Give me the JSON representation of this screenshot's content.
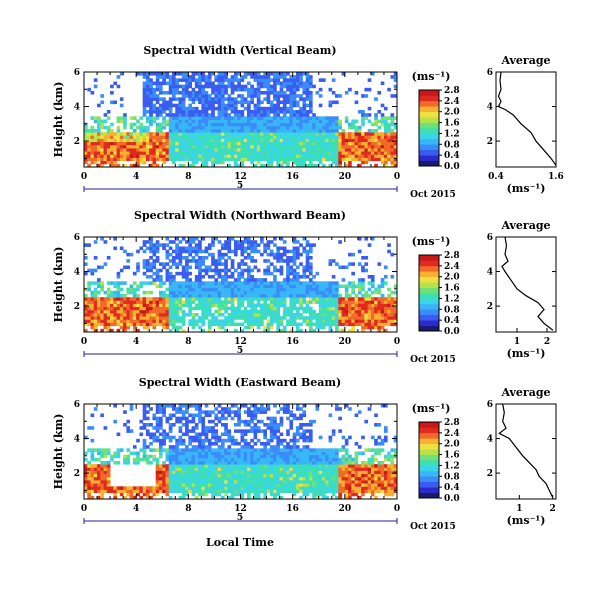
{
  "colors": {
    "scale": [
      "#1a1a6e",
      "#2a2acd",
      "#3a5cf0",
      "#3a8cf8",
      "#38b6f8",
      "#3ad6e8",
      "#3de0b0",
      "#6fe07a",
      "#b6e24a",
      "#f0e040",
      "#f8b030",
      "#f06a28",
      "#e02a20",
      "#c81818"
    ]
  },
  "chart_data": [
    {
      "type": "heatmap",
      "title": "Spectral Width (Vertical Beam)",
      "ylabel": "Height (km)",
      "xlabel": "",
      "x_ticks": [
        "0",
        "4",
        "8",
        "12",
        "16",
        "20",
        "0"
      ],
      "y_ticks": [
        "2",
        "4",
        "6"
      ],
      "xlim": [
        0,
        24
      ],
      "ylim": [
        0.5,
        6
      ],
      "date_label": "Oct 2015",
      "day_label": "5",
      "colorbar": {
        "unit": "(ms⁻¹)",
        "ticks": [
          "0.0",
          "0.4",
          "0.8",
          "1.2",
          "1.6",
          "2.0",
          "2.4",
          "2.8"
        ],
        "range": [
          0,
          2.8
        ]
      },
      "profile": {
        "title": "Average",
        "xlabel": "(ms⁻¹)",
        "x_ticks": [
          "0.4",
          "1.6"
        ],
        "xlim": [
          0.4,
          1.6
        ],
        "y_ticks": [
          "2",
          "4",
          "6"
        ],
        "heights": [
          0.6,
          1.0,
          1.5,
          2.0,
          2.5,
          3.0,
          3.5,
          3.8,
          4.0,
          4.3,
          4.6,
          5.0,
          5.5,
          6.0
        ],
        "values": [
          1.6,
          1.5,
          1.35,
          1.2,
          1.1,
          0.9,
          0.75,
          0.6,
          0.45,
          0.5,
          0.45,
          0.5,
          0.48,
          0.5
        ]
      }
    },
    {
      "type": "heatmap",
      "title": "Spectral Width (Northward Beam)",
      "ylabel": "Height (km)",
      "xlabel": "",
      "x_ticks": [
        "0",
        "4",
        "8",
        "12",
        "16",
        "20",
        "0"
      ],
      "y_ticks": [
        "2",
        "4",
        "6"
      ],
      "xlim": [
        0,
        24
      ],
      "ylim": [
        0.5,
        6
      ],
      "date_label": "Oct 2015",
      "day_label": "5",
      "colorbar": {
        "unit": "(ms⁻¹)",
        "ticks": [
          "0.0",
          "0.4",
          "0.8",
          "1.2",
          "1.6",
          "2.0",
          "2.4",
          "2.8"
        ],
        "range": [
          0,
          2.8
        ]
      },
      "profile": {
        "title": "Average",
        "xlabel": "(ms⁻¹)",
        "x_ticks": [
          "1",
          "2"
        ],
        "xlim": [
          0.3,
          2.3
        ],
        "y_ticks": [
          "2",
          "4",
          "6"
        ],
        "heights": [
          0.6,
          1.0,
          1.4,
          1.8,
          2.2,
          2.6,
          3.0,
          3.5,
          4.0,
          4.3,
          4.6,
          5.0,
          5.5,
          6.0
        ],
        "values": [
          2.2,
          1.9,
          1.7,
          1.9,
          1.7,
          1.3,
          1.0,
          0.8,
          0.6,
          0.5,
          0.7,
          0.6,
          0.65,
          0.6
        ]
      }
    },
    {
      "type": "heatmap",
      "title": "Spectral Width (Eastward Beam)",
      "ylabel": "Height (km)",
      "xlabel": "Local Time",
      "x_ticks": [
        "0",
        "4",
        "8",
        "12",
        "16",
        "20",
        "0"
      ],
      "y_ticks": [
        "2",
        "4",
        "6"
      ],
      "xlim": [
        0,
        24
      ],
      "ylim": [
        0.5,
        6
      ],
      "date_label": "Oct 2015",
      "day_label": "5",
      "colorbar": {
        "unit": "(ms⁻¹)",
        "ticks": [
          "0.0",
          "0.4",
          "0.8",
          "1.2",
          "1.6",
          "2.0",
          "2.4",
          "2.8"
        ],
        "range": [
          0,
          2.8
        ]
      },
      "profile": {
        "title": "Average",
        "xlabel": "(ms⁻¹)",
        "x_ticks": [
          "1",
          "2"
        ],
        "xlim": [
          0.3,
          2.1
        ],
        "y_ticks": [
          "2",
          "4",
          "6"
        ],
        "heights": [
          0.6,
          1.0,
          1.4,
          1.8,
          2.2,
          2.6,
          3.0,
          3.5,
          4.0,
          4.3,
          4.6,
          5.0,
          5.5,
          6.0
        ],
        "values": [
          2.0,
          1.9,
          1.8,
          1.6,
          1.5,
          1.3,
          1.1,
          0.9,
          0.7,
          0.4,
          0.6,
          0.5,
          0.55,
          0.5
        ]
      }
    }
  ]
}
